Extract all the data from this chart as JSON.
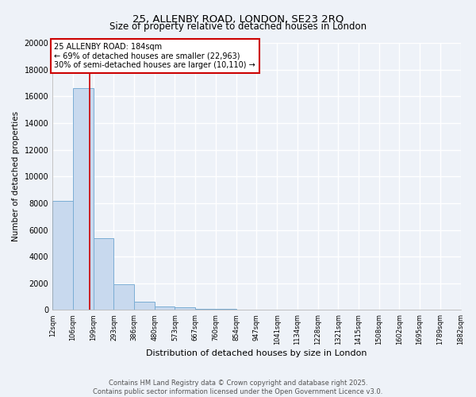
{
  "title": "25, ALLENBY ROAD, LONDON, SE23 2RQ",
  "subtitle": "Size of property relative to detached houses in London",
  "xlabel": "Distribution of detached houses by size in London",
  "ylabel": "Number of detached properties",
  "bar_color": "#c8d9ee",
  "bar_edge_color": "#7aadd4",
  "background_color": "#eef2f8",
  "grid_color": "#ffffff",
  "bin_labels": [
    "12sqm",
    "106sqm",
    "199sqm",
    "293sqm",
    "386sqm",
    "480sqm",
    "573sqm",
    "667sqm",
    "760sqm",
    "854sqm",
    "947sqm",
    "1041sqm",
    "1134sqm",
    "1228sqm",
    "1321sqm",
    "1415sqm",
    "1508sqm",
    "1602sqm",
    "1695sqm",
    "1789sqm",
    "1882sqm"
  ],
  "bin_edges": [
    12,
    106,
    199,
    293,
    386,
    480,
    573,
    667,
    760,
    854,
    947,
    1041,
    1134,
    1228,
    1321,
    1415,
    1508,
    1602,
    1695,
    1789,
    1882
  ],
  "bar_heights": [
    8200,
    16600,
    5400,
    1900,
    650,
    280,
    200,
    100,
    60,
    30,
    20,
    15,
    12,
    10,
    8,
    6,
    5,
    4,
    3,
    2
  ],
  "property_size": 184,
  "red_line_color": "#cc0000",
  "annotation_line1": "25 ALLENBY ROAD: 184sqm",
  "annotation_line2": "← 69% of detached houses are smaller (22,963)",
  "annotation_line3": "30% of semi-detached houses are larger (10,110) →",
  "annotation_box_color": "#ffffff",
  "annotation_box_edge_color": "#cc0000",
  "ylim_max": 20000,
  "yticks": [
    0,
    2000,
    4000,
    6000,
    8000,
    10000,
    12000,
    14000,
    16000,
    18000,
    20000
  ],
  "copyright_text": "Contains HM Land Registry data © Crown copyright and database right 2025.\nContains public sector information licensed under the Open Government Licence v3.0."
}
